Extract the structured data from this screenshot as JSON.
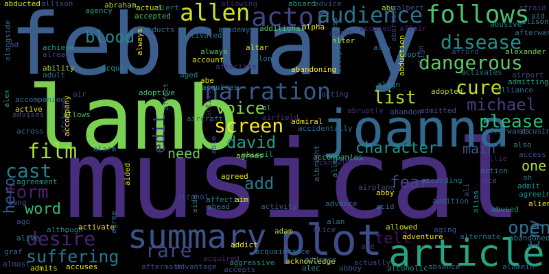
{
  "colors": {
    "background": "#000000"
  },
  "words": [
    {
      "text": "february",
      "color": "#3b5e8c"
    },
    {
      "text": "musical",
      "color": "#472d7b"
    },
    {
      "text": "lamb",
      "color": "#7ad151"
    },
    {
      "text": "joanna",
      "color": "#31688e"
    },
    {
      "text": "plot",
      "color": "#3e4c8a"
    },
    {
      "text": "article",
      "color": "#25a584"
    },
    {
      "text": "summary",
      "color": "#3b528b"
    },
    {
      "text": "follows",
      "color": "#4ac16d"
    },
    {
      "text": "actor",
      "color": "#3f4788"
    },
    {
      "text": "audience",
      "color": "#2c728e"
    },
    {
      "text": "allen",
      "color": "#d2e21b"
    },
    {
      "text": "narration",
      "color": "#38598c"
    },
    {
      "text": "disease",
      "color": "#21918c"
    },
    {
      "text": "dangerous",
      "color": "#5ec962"
    },
    {
      "text": "screen",
      "color": "#fde725"
    },
    {
      "text": "cure",
      "color": "#c2df23"
    },
    {
      "text": "please",
      "color": "#35b779"
    },
    {
      "text": "michael",
      "color": "#433e85"
    },
    {
      "text": "blood",
      "color": "#24878e"
    },
    {
      "text": "desire",
      "color": "#482677"
    },
    {
      "text": "rare",
      "color": "#3e4a89"
    },
    {
      "text": "suffering",
      "color": "#2a788e"
    },
    {
      "text": "voice",
      "color": "#86d549"
    },
    {
      "text": "david",
      "color": "#1f9e89"
    },
    {
      "text": "film",
      "color": "#aadc32"
    },
    {
      "text": "list",
      "color": "#a5db36"
    },
    {
      "text": "character",
      "color": "#1f948c"
    },
    {
      "text": "fear",
      "color": "#414487"
    },
    {
      "text": "cast",
      "color": "#277f8e"
    },
    {
      "text": "form",
      "color": "#481f70"
    },
    {
      "text": "word",
      "color": "#32b67a"
    },
    {
      "text": "main",
      "color": "#3b528b"
    },
    {
      "text": "open",
      "color": "#2d708e"
    },
    {
      "text": "add",
      "color": "#2a788e"
    },
    {
      "text": "need",
      "color": "#6ccd5a"
    },
    {
      "text": "tell",
      "color": "#471365"
    },
    {
      "text": "one",
      "color": "#b5de2b"
    },
    {
      "text": "edit",
      "color": "#443983"
    },
    {
      "text": "try",
      "color": "#33638d"
    },
    {
      "text": "hero",
      "color": "#38598c"
    },
    {
      "text": "abducted",
      "color": "#e5e419"
    },
    {
      "text": "allison",
      "color": "#3b528b"
    },
    {
      "text": "agency",
      "color": "#1f9e89"
    },
    {
      "text": "abraham",
      "color": "#addc30"
    },
    {
      "text": "actual",
      "color": "#c8e020"
    },
    {
      "text": "alert",
      "color": "#2c728e"
    },
    {
      "text": "allowing",
      "color": "#482878"
    },
    {
      "text": "aboard",
      "color": "#1fa188"
    },
    {
      "text": "advice",
      "color": "#3b528b"
    },
    {
      "text": "abu",
      "color": "#a2da37"
    },
    {
      "text": "albert",
      "color": "#3e4c8a"
    },
    {
      "text": "afraid",
      "color": "#46337e"
    },
    {
      "text": "aid",
      "color": "#2a788e"
    },
    {
      "text": "alison",
      "color": "#26828e"
    },
    {
      "text": "accepted",
      "color": "#4ac16d"
    },
    {
      "text": "abducts",
      "color": "#2d708e"
    },
    {
      "text": "academy",
      "color": "#31688e"
    },
    {
      "text": "additional",
      "color": "#4ac16d"
    },
    {
      "text": "alpha",
      "color": "#fde725"
    },
    {
      "text": "activated",
      "color": "#2c728e"
    },
    {
      "text": "agent",
      "color": "#46327e"
    },
    {
      "text": "affair",
      "color": "#482677"
    },
    {
      "text": "abusive",
      "color": "#26828e"
    },
    {
      "text": "afterward",
      "color": "#2c728e"
    },
    {
      "text": "accused",
      "color": "#482475"
    },
    {
      "text": "ad",
      "color": "#3b528b"
    },
    {
      "text": "achieve",
      "color": "#1f9e89"
    },
    {
      "text": "already",
      "color": "#414487"
    },
    {
      "text": "ability",
      "color": "#a2da37"
    },
    {
      "text": "adult",
      "color": "#2c728e"
    },
    {
      "text": "acquire",
      "color": "#1f948c"
    },
    {
      "text": "aged",
      "color": "#26828e"
    },
    {
      "text": "always",
      "color": "#fde725"
    },
    {
      "text": "account",
      "color": "#5ec962"
    },
    {
      "text": "afterlife",
      "color": "#e5e419"
    },
    {
      "text": "abe",
      "color": "#472d7b"
    },
    {
      "text": "acquires",
      "color": "#d8e219"
    },
    {
      "text": "altar",
      "color": "#21918c"
    },
    {
      "text": "along",
      "color": "#d8e219"
    },
    {
      "text": "alter",
      "color": "#2c728e"
    },
    {
      "text": "ally",
      "color": "#b5de2b"
    },
    {
      "text": "adopt",
      "color": "#2a788e"
    },
    {
      "text": "afford",
      "color": "#26828e"
    },
    {
      "text": "alexander",
      "color": "#3e4a89"
    },
    {
      "text": "activates",
      "color": "#7ad151"
    },
    {
      "text": "airport",
      "color": "#2a788e"
    },
    {
      "text": "admitting",
      "color": "#3e4a89"
    },
    {
      "text": "alliance",
      "color": "#1fa188"
    },
    {
      "text": "abandoning",
      "color": "#2d708e"
    },
    {
      "text": "actress",
      "color": "#fde725"
    },
    {
      "text": "abortion",
      "color": "#2c728e"
    },
    {
      "text": "abduction",
      "color": "#3e4a89"
    },
    {
      "text": "align",
      "color": "#e5e419"
    },
    {
      "text": "acting",
      "color": "#3e4a89"
    },
    {
      "text": "accept",
      "color": "#21918c"
    },
    {
      "text": "adopted",
      "color": "#3b528b"
    },
    {
      "text": "alongside",
      "color": "#2c728e"
    },
    {
      "text": "air",
      "color": "#b5de2b"
    },
    {
      "text": "adoptive",
      "color": "#31688e"
    },
    {
      "text": "accompanied",
      "color": "#3b528b"
    },
    {
      "text": "active",
      "color": "#4ac16d"
    },
    {
      "text": "advises",
      "color": "#2c728e"
    },
    {
      "text": "alex",
      "color": "#e5e419"
    },
    {
      "text": "allows",
      "color": "#3e4a89"
    },
    {
      "text": "accompany",
      "color": "#21918c"
    },
    {
      "text": "affect",
      "color": "#4ac16d"
    },
    {
      "text": "aircraft",
      "color": "#fde725"
    },
    {
      "text": "activist",
      "color": "#2c728e"
    },
    {
      "text": "al",
      "color": "#2c728e"
    },
    {
      "text": "airfield",
      "color": "#482878"
    },
    {
      "text": "accidentally",
      "color": "#1f9e89"
    },
    {
      "text": "admiral",
      "color": "#46337e"
    },
    {
      "text": "abruptly",
      "color": "#31688e"
    },
    {
      "text": "abandon",
      "color": "#fde725"
    },
    {
      "text": "admitted",
      "color": "#472d7b"
    },
    {
      "text": "allie",
      "color": "#3b528b"
    },
    {
      "text": "afterwards",
      "color": "#3b528b"
    },
    {
      "text": "accusing",
      "color": "#482475"
    },
    {
      "text": "also",
      "color": "#2a788e"
    },
    {
      "text": "access",
      "color": "#2d708e"
    },
    {
      "text": "across",
      "color": "#26828e"
    },
    {
      "text": "african",
      "color": "#3e4a89"
    },
    {
      "text": "alarm",
      "color": "#2c728e"
    },
    {
      "text": "abigail",
      "color": "#3e4a89"
    },
    {
      "text": "accompanies",
      "color": "#2c728e"
    },
    {
      "text": "acknowledges",
      "color": "#1f9e89"
    },
    {
      "text": "alone",
      "color": "#35b779"
    },
    {
      "text": "agrees",
      "color": "#482878"
    },
    {
      "text": "able",
      "color": "#3e4a89"
    },
    {
      "text": "action",
      "color": "#addc30"
    },
    {
      "text": "ah",
      "color": "#3b528b"
    },
    {
      "text": "agreement",
      "color": "#2d708e"
    },
    {
      "text": "agreed",
      "color": "#2c728e"
    },
    {
      "text": "albright",
      "color": "#21918c"
    },
    {
      "text": "alley",
      "color": "#e5e419"
    },
    {
      "text": "according",
      "color": "#2c728e"
    },
    {
      "text": "ace",
      "color": "#26828e"
    },
    {
      "text": "admit",
      "color": "#2c728e"
    },
    {
      "text": "agreeing",
      "color": "#3e4a89"
    },
    {
      "text": "aang",
      "color": "#21918c"
    },
    {
      "text": "aided",
      "color": "#21918c"
    },
    {
      "text": "alcohol",
      "color": "#3e4a89"
    },
    {
      "text": "affection",
      "color": "#e5e419"
    },
    {
      "text": "aim",
      "color": "#3e4a89"
    },
    {
      "text": "abby",
      "color": "#26828e"
    },
    {
      "text": "acid",
      "color": "#e5e419"
    },
    {
      "text": "addition",
      "color": "#fde725"
    },
    {
      "text": "airplane",
      "color": "#2c728e"
    },
    {
      "text": "alien",
      "color": "#31688e"
    },
    {
      "text": "ago",
      "color": "#3e4a89"
    },
    {
      "text": "ahead",
      "color": "#fde725"
    },
    {
      "text": "activity",
      "color": "#3b528b"
    },
    {
      "text": "advance",
      "color": "#2c728e"
    },
    {
      "text": "abused",
      "color": "#31688e"
    },
    {
      "text": "ali",
      "color": "#2c728e"
    },
    {
      "text": "alias",
      "color": "#21918c"
    },
    {
      "text": "although",
      "color": "#3e4a89"
    },
    {
      "text": "activate",
      "color": "#21918c"
    },
    {
      "text": "alan",
      "color": "#26828e"
    },
    {
      "text": "allowed",
      "color": "#e5e419"
    },
    {
      "text": "aging",
      "color": "#2c728e"
    },
    {
      "text": "alternate",
      "color": "#d8e219"
    },
    {
      "text": "abandoned",
      "color": "#3b528b"
    },
    {
      "text": "alive",
      "color": "#2c728e"
    },
    {
      "text": "graf",
      "color": "#26828e"
    },
    {
      "text": "aide",
      "color": "#21918c"
    },
    {
      "text": "adam",
      "color": "#2c728e"
    },
    {
      "text": "alice",
      "color": "#2a788e"
    },
    {
      "text": "adventure",
      "color": "#b5de2b"
    },
    {
      "text": "addict",
      "color": "#3e4a89"
    },
    {
      "text": "acquaintance",
      "color": "#fde725"
    },
    {
      "text": "age",
      "color": "#fde725"
    },
    {
      "text": "agree",
      "color": "#2c728e"
    },
    {
      "text": "almost",
      "color": "#3e4a89"
    },
    {
      "text": "admits",
      "color": "#31688e"
    },
    {
      "text": "accuses",
      "color": "#3b528b"
    },
    {
      "text": "aftermath",
      "color": "#d8e219"
    },
    {
      "text": "advantage",
      "color": "#e5e419"
    },
    {
      "text": "acquired",
      "color": "#3e4a89"
    },
    {
      "text": "aggressive",
      "color": "#3b528b"
    },
    {
      "text": "accepts",
      "color": "#482475"
    },
    {
      "text": "acknowledge",
      "color": "#21918c"
    },
    {
      "text": "address",
      "color": "#3e4a89"
    },
    {
      "text": "alec",
      "color": "#e5e419"
    },
    {
      "text": "abbey",
      "color": "#2c728e"
    },
    {
      "text": "actually",
      "color": "#21918c"
    },
    {
      "text": "alcoholic",
      "color": "#3b528b"
    },
    {
      "text": "absence",
      "color": "#3e4a89"
    },
    {
      "text": "alamein",
      "color": "#21918c"
    },
    {
      "text": "accomplice",
      "color": "#2c728e"
    },
    {
      "text": "advanced",
      "color": "#31688e"
    }
  ]
}
